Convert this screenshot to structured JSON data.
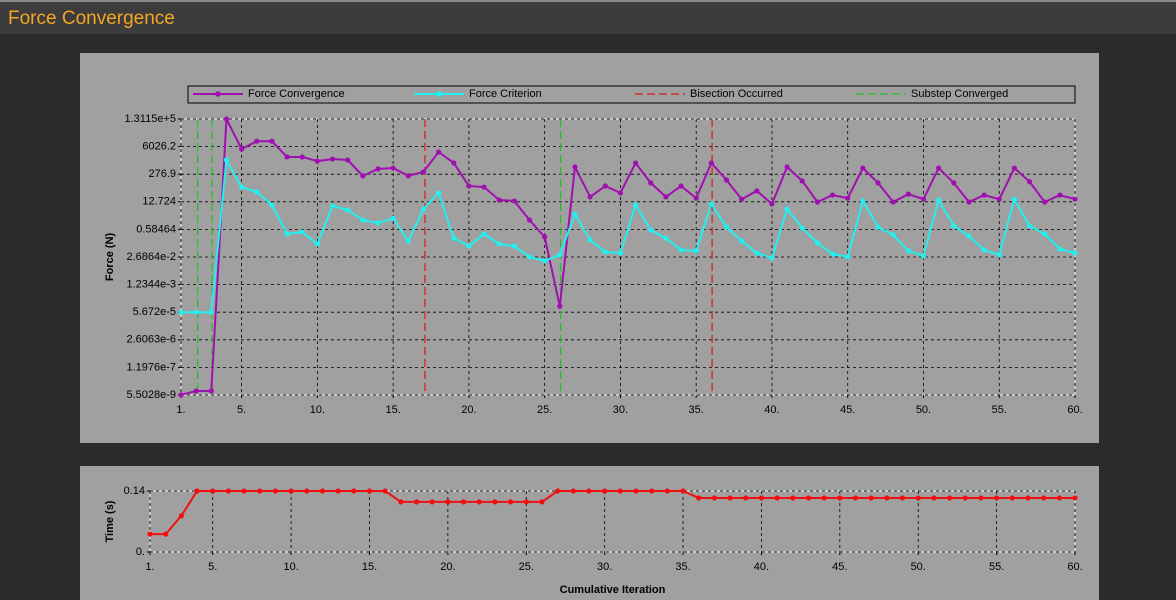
{
  "panel_title": "Force Convergence",
  "chart_data": [
    {
      "type": "line",
      "log_y": true,
      "grid": true,
      "y_label": "Force (N)",
      "x": [
        1,
        2,
        3,
        4,
        5,
        6,
        7,
        8,
        9,
        10,
        11,
        12,
        13,
        14,
        15,
        16,
        17,
        18,
        19,
        20,
        21,
        22,
        23,
        24,
        25,
        26,
        27,
        28,
        29,
        30,
        31,
        32,
        33,
        34,
        35,
        36,
        37,
        38,
        39,
        40,
        41,
        42,
        43,
        44,
        45,
        46,
        47,
        48,
        49,
        50,
        51,
        52,
        53,
        54,
        55,
        56,
        57,
        58,
        59,
        60
      ],
      "xlim": [
        1,
        60
      ],
      "xticks": [
        {
          "value": 1,
          "label": "1."
        },
        {
          "value": 5,
          "label": "5."
        },
        {
          "value": 10,
          "label": "10."
        },
        {
          "value": 15,
          "label": "15."
        },
        {
          "value": 20,
          "label": "20."
        },
        {
          "value": 25,
          "label": "25."
        },
        {
          "value": 30,
          "label": "30."
        },
        {
          "value": 35,
          "label": "35."
        },
        {
          "value": 40,
          "label": "40."
        },
        {
          "value": 45,
          "label": "45."
        },
        {
          "value": 50,
          "label": "50."
        },
        {
          "value": 55,
          "label": "55."
        },
        {
          "value": 60,
          "label": "60."
        }
      ],
      "ylim": [
        5.5028e-09,
        131150
      ],
      "yticks": [
        {
          "value": 131150,
          "label": "1.3115e+5"
        },
        6026.2,
        276.9,
        12.724,
        0.58464,
        {
          "value": 0.026864,
          "label": "2.6864e-2"
        },
        {
          "value": 0.0012344,
          "label": "1.2344e-3"
        },
        {
          "value": 5.672e-05,
          "label": "5.672e-5"
        },
        {
          "value": 2.6063e-06,
          "label": "2.6063e-6"
        },
        {
          "value": 1.1976e-07,
          "label": "1.1976e-7"
        },
        {
          "value": 5.5028e-09,
          "label": "5.5028e-9"
        }
      ],
      "series": [
        {
          "name": "Force Convergence",
          "color": "#a010b0",
          "values": [
            5.6e-09,
            8.6e-09,
            8.6e-09,
            130000,
            4600,
            11000,
            11000,
            1900,
            1900,
            1200,
            1500,
            1350,
            230,
            500,
            550,
            230,
            360,
            3300,
            970,
            74,
            66,
            15.6,
            14,
            1.66,
            0.25,
            0.00011,
            620,
            22,
            74,
            34,
            970,
            105,
            22,
            74,
            19,
            970,
            145,
            17,
            43,
            10,
            620,
            130,
            12.4,
            27,
            19,
            550,
            105,
            12.4,
            30,
            17,
            550,
            105,
            12.4,
            27,
            17,
            550,
            120,
            12.4,
            27,
            17
          ]
        },
        {
          "name": "Force Criterion",
          "color": "#20f0f0",
          "values": [
            5.672e-05,
            5.672e-05,
            5.672e-05,
            1350,
            66,
            38,
            8.9,
            0.35,
            0.44,
            0.115,
            8,
            5.1,
            1.66,
            1.2,
            2.0,
            0.16,
            5.7,
            34,
            0.22,
            0.091,
            0.35,
            0.115,
            0.091,
            0.027,
            0.0174,
            0.034,
            3.2,
            0.18,
            0.047,
            0.042,
            8.9,
            0.55,
            0.22,
            0.059,
            0.053,
            10,
            0.76,
            0.16,
            0.042,
            0.024,
            5.7,
            0.68,
            0.13,
            0.038,
            0.027,
            14,
            0.76,
            0.32,
            0.053,
            0.03,
            15.6,
            0.86,
            0.28,
            0.059,
            0.034,
            17,
            0.86,
            0.35,
            0.066,
            0.042
          ]
        }
      ],
      "events": [
        {
          "name": "Bisection Occurred",
          "color": "#e01818",
          "x": [
            17.1,
            36.05
          ]
        },
        {
          "name": "Substep Converged",
          "color": "#20c020",
          "x": [
            2.1,
            3.05,
            26.05
          ]
        }
      ]
    },
    {
      "type": "line",
      "grid": true,
      "y_label": "Time (s)",
      "x_label": "Cumulative Iteration",
      "x": [
        1,
        2,
        3,
        4,
        5,
        6,
        7,
        8,
        9,
        10,
        11,
        12,
        13,
        14,
        15,
        16,
        17,
        18,
        19,
        20,
        21,
        22,
        23,
        24,
        25,
        26,
        27,
        28,
        29,
        30,
        31,
        32,
        33,
        34,
        35,
        36,
        37,
        38,
        39,
        40,
        41,
        42,
        43,
        44,
        45,
        46,
        47,
        48,
        49,
        50,
        51,
        52,
        53,
        54,
        55,
        56,
        57,
        58,
        59,
        60
      ],
      "xlim": [
        1,
        60
      ],
      "xticks": [
        {
          "value": 1,
          "label": "1."
        },
        {
          "value": 5,
          "label": "5."
        },
        {
          "value": 10,
          "label": "10."
        },
        {
          "value": 15,
          "label": "15."
        },
        {
          "value": 20,
          "label": "20."
        },
        {
          "value": 25,
          "label": "25."
        },
        {
          "value": 30,
          "label": "30."
        },
        {
          "value": 35,
          "label": "35."
        },
        {
          "value": 40,
          "label": "40."
        },
        {
          "value": 45,
          "label": "45."
        },
        {
          "value": 50,
          "label": "50."
        },
        {
          "value": 55,
          "label": "55."
        },
        {
          "value": 60,
          "label": "60."
        }
      ],
      "ylim": [
        0,
        0.14
      ],
      "yticks": [
        {
          "value": 0,
          "label": "0."
        },
        0.14
      ],
      "color": "#f01010",
      "values": [
        0.041,
        0.041,
        0.083,
        0.14,
        0.14,
        0.14,
        0.14,
        0.14,
        0.14,
        0.14,
        0.14,
        0.14,
        0.14,
        0.14,
        0.14,
        0.14,
        0.115,
        0.115,
        0.115,
        0.115,
        0.115,
        0.115,
        0.115,
        0.115,
        0.115,
        0.115,
        0.14,
        0.14,
        0.14,
        0.14,
        0.14,
        0.14,
        0.14,
        0.14,
        0.14,
        0.124,
        0.124,
        0.124,
        0.124,
        0.124,
        0.124,
        0.124,
        0.124,
        0.124,
        0.124,
        0.124,
        0.124,
        0.124,
        0.124,
        0.124,
        0.124,
        0.124,
        0.124,
        0.124,
        0.124,
        0.124,
        0.124,
        0.124,
        0.124,
        0.124
      ]
    }
  ]
}
